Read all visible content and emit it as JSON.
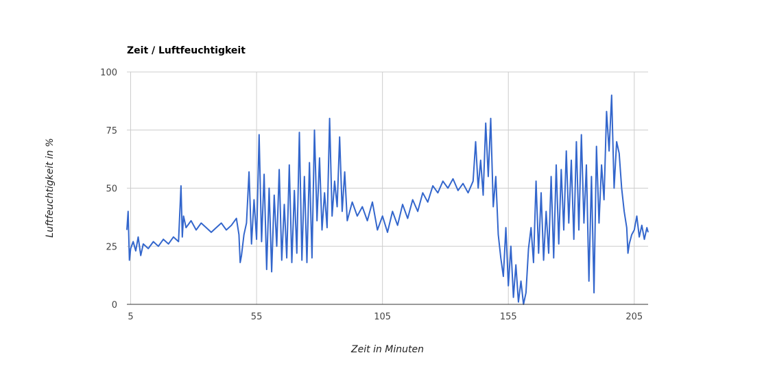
{
  "chart_data": {
    "type": "line",
    "title": "Zeit / Luftfeuchtigkeit",
    "xlabel": "Zeit in Minuten",
    "ylabel": "Luftfeuchtigkeit in %",
    "xlim": [
      3.5,
      210.5
    ],
    "ylim": [
      0,
      100
    ],
    "x_ticks": [
      5,
      55,
      105,
      155,
      205
    ],
    "y_ticks": [
      0,
      25,
      50,
      75,
      100
    ],
    "grid": true,
    "legend": "none",
    "series": [
      {
        "color": "#3366cc",
        "points": [
          [
            3.5,
            32
          ],
          [
            4,
            40
          ],
          [
            4.5,
            19
          ],
          [
            5,
            24
          ],
          [
            6,
            27
          ],
          [
            7,
            23
          ],
          [
            8,
            29
          ],
          [
            9,
            21
          ],
          [
            10,
            26
          ],
          [
            12,
            24
          ],
          [
            14,
            27
          ],
          [
            16,
            25
          ],
          [
            18,
            28
          ],
          [
            20,
            26
          ],
          [
            22,
            29
          ],
          [
            24,
            27
          ],
          [
            25,
            51
          ],
          [
            25.5,
            29
          ],
          [
            26,
            38
          ],
          [
            27,
            33
          ],
          [
            29,
            36
          ],
          [
            31,
            32
          ],
          [
            33,
            35
          ],
          [
            35,
            33
          ],
          [
            37,
            31
          ],
          [
            39,
            33
          ],
          [
            41,
            35
          ],
          [
            43,
            32
          ],
          [
            45,
            34
          ],
          [
            47,
            37
          ],
          [
            48,
            30
          ],
          [
            48.5,
            18
          ],
          [
            49,
            21
          ],
          [
            50,
            30
          ],
          [
            51,
            35
          ],
          [
            52,
            57
          ],
          [
            53,
            26
          ],
          [
            54,
            45
          ],
          [
            55,
            28
          ],
          [
            56,
            73
          ],
          [
            57,
            27
          ],
          [
            58,
            56
          ],
          [
            59,
            15
          ],
          [
            60,
            50
          ],
          [
            61,
            14
          ],
          [
            62,
            47
          ],
          [
            63,
            25
          ],
          [
            64,
            58
          ],
          [
            65,
            19
          ],
          [
            66,
            43
          ],
          [
            67,
            20
          ],
          [
            68,
            60
          ],
          [
            69,
            18
          ],
          [
            70,
            49
          ],
          [
            71,
            22
          ],
          [
            72,
            74
          ],
          [
            73,
            19
          ],
          [
            74,
            55
          ],
          [
            75,
            18
          ],
          [
            76,
            61
          ],
          [
            77,
            20
          ],
          [
            78,
            75
          ],
          [
            79,
            36
          ],
          [
            80,
            63
          ],
          [
            81,
            32
          ],
          [
            82,
            48
          ],
          [
            83,
            33
          ],
          [
            84,
            80
          ],
          [
            85,
            38
          ],
          [
            86,
            53
          ],
          [
            87,
            42
          ],
          [
            88,
            72
          ],
          [
            89,
            40
          ],
          [
            90,
            57
          ],
          [
            91,
            36
          ],
          [
            93,
            44
          ],
          [
            95,
            38
          ],
          [
            97,
            42
          ],
          [
            99,
            36
          ],
          [
            101,
            44
          ],
          [
            103,
            32
          ],
          [
            105,
            38
          ],
          [
            107,
            31
          ],
          [
            109,
            40
          ],
          [
            111,
            34
          ],
          [
            113,
            43
          ],
          [
            115,
            37
          ],
          [
            117,
            45
          ],
          [
            119,
            40
          ],
          [
            121,
            48
          ],
          [
            123,
            44
          ],
          [
            125,
            51
          ],
          [
            127,
            48
          ],
          [
            129,
            53
          ],
          [
            131,
            50
          ],
          [
            133,
            54
          ],
          [
            135,
            49
          ],
          [
            137,
            52
          ],
          [
            139,
            48
          ],
          [
            141,
            53
          ],
          [
            142,
            70
          ],
          [
            143,
            50
          ],
          [
            144,
            62
          ],
          [
            145,
            47
          ],
          [
            146,
            78
          ],
          [
            147,
            55
          ],
          [
            148,
            80
          ],
          [
            149,
            42
          ],
          [
            150,
            55
          ],
          [
            151,
            30
          ],
          [
            152,
            20
          ],
          [
            153,
            12
          ],
          [
            154,
            33
          ],
          [
            155,
            8
          ],
          [
            156,
            25
          ],
          [
            157,
            3
          ],
          [
            158,
            17
          ],
          [
            159,
            1
          ],
          [
            160,
            10
          ],
          [
            161,
            0
          ],
          [
            162,
            5
          ],
          [
            163,
            24
          ],
          [
            164,
            33
          ],
          [
            165,
            18
          ],
          [
            166,
            53
          ],
          [
            167,
            22
          ],
          [
            168,
            48
          ],
          [
            169,
            19
          ],
          [
            170,
            40
          ],
          [
            171,
            22
          ],
          [
            172,
            55
          ],
          [
            173,
            20
          ],
          [
            174,
            60
          ],
          [
            175,
            26
          ],
          [
            176,
            58
          ],
          [
            177,
            32
          ],
          [
            178,
            66
          ],
          [
            179,
            35
          ],
          [
            180,
            62
          ],
          [
            181,
            28
          ],
          [
            182,
            70
          ],
          [
            183,
            32
          ],
          [
            184,
            73
          ],
          [
            185,
            35
          ],
          [
            186,
            60
          ],
          [
            187,
            10
          ],
          [
            188,
            55
          ],
          [
            189,
            5
          ],
          [
            190,
            68
          ],
          [
            191,
            35
          ],
          [
            192,
            60
          ],
          [
            193,
            45
          ],
          [
            194,
            83
          ],
          [
            195,
            66
          ],
          [
            196,
            90
          ],
          [
            197,
            50
          ],
          [
            198,
            70
          ],
          [
            199,
            65
          ],
          [
            200,
            50
          ],
          [
            201,
            40
          ],
          [
            202,
            33
          ],
          [
            202.5,
            22
          ],
          [
            203,
            26
          ],
          [
            204,
            30
          ],
          [
            205,
            32
          ],
          [
            206,
            38
          ],
          [
            207,
            29
          ],
          [
            208,
            34
          ],
          [
            209,
            28
          ],
          [
            210,
            33
          ],
          [
            210.5,
            31
          ]
        ]
      }
    ]
  }
}
